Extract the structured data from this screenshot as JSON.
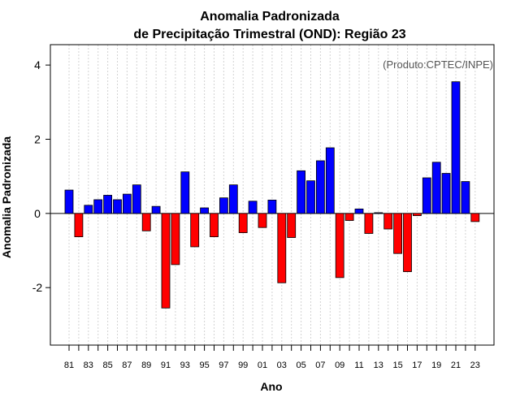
{
  "chart_data": {
    "type": "bar",
    "title_line1": "Anomalia Padronizada",
    "title_line2": "de Precipitação Trimestral (OND): Região 23",
    "xlabel": "Ano",
    "ylabel": "Anomalia Padronizada",
    "credit": "(Produto:CPTEC/INPE)",
    "ylim": [
      -3.55,
      4.55
    ],
    "yticks": [
      -2,
      0,
      2,
      4
    ],
    "ytick_labels": [
      "-2",
      "0",
      "2",
      "4"
    ],
    "categories": [
      "81",
      "82",
      "83",
      "84",
      "85",
      "86",
      "87",
      "88",
      "89",
      "90",
      "91",
      "92",
      "93",
      "94",
      "95",
      "96",
      "97",
      "98",
      "99",
      "00",
      "01",
      "02",
      "03",
      "04",
      "05",
      "06",
      "07",
      "08",
      "09",
      "10",
      "11",
      "12",
      "13",
      "14",
      "15",
      "16",
      "17",
      "18",
      "19",
      "20",
      "21",
      "22",
      "23"
    ],
    "xtick_labels": [
      "81",
      "83",
      "85",
      "87",
      "89",
      "91",
      "93",
      "95",
      "97",
      "99",
      "01",
      "03",
      "05",
      "07",
      "09",
      "11",
      "13",
      "15",
      "17",
      "19",
      "21",
      "23"
    ],
    "values": [
      0.63,
      -0.63,
      0.22,
      0.37,
      0.49,
      0.37,
      0.52,
      0.77,
      -0.47,
      0.19,
      -2.55,
      -1.38,
      1.12,
      -0.9,
      0.15,
      -0.63,
      0.42,
      0.77,
      -0.52,
      0.33,
      -0.38,
      0.36,
      -1.87,
      -0.65,
      1.15,
      0.88,
      1.42,
      1.77,
      -1.73,
      -0.19,
      0.12,
      -0.54,
      0.02,
      -0.42,
      -1.08,
      -1.57,
      -0.06,
      0.96,
      1.38,
      1.08,
      3.55,
      0.86,
      -0.22
    ],
    "colors": {
      "positive": "#0000ff",
      "negative": "#ff0000",
      "grid": "#d3d3d3",
      "frame": "#000000"
    }
  }
}
